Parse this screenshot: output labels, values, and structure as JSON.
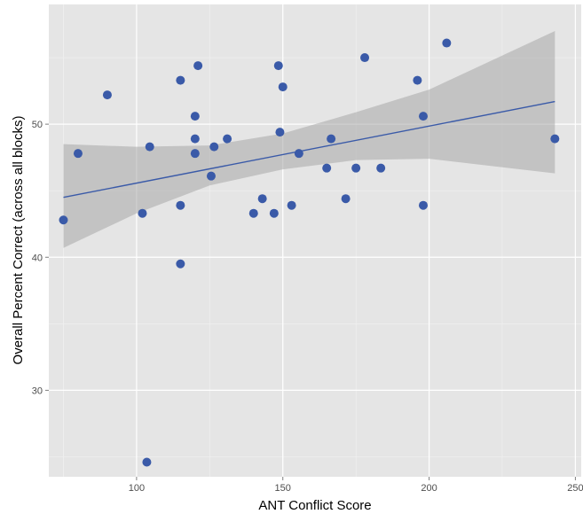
{
  "chart_data": {
    "type": "scatter",
    "title": "",
    "xlabel": "ANT Conflict Score",
    "ylabel": "Overall Percent Correct (across all blocks)",
    "xlim": [
      70,
      252
    ],
    "ylim": [
      23.5,
      59.0
    ],
    "x_ticks": [
      100,
      150,
      200,
      250
    ],
    "y_ticks": [
      30,
      40,
      50
    ],
    "grid": true,
    "legend": "none",
    "colors": {
      "panel_bg": "#e5e5e5",
      "grid_major": "#ffffff",
      "grid_minor": "#f2f2f2",
      "point": "#3a5aa8",
      "line": "#3a5aa8",
      "ribbon": "#a8a8a8"
    },
    "points": [
      {
        "x": 75,
        "y": 42.8
      },
      {
        "x": 80,
        "y": 47.8
      },
      {
        "x": 90,
        "y": 52.2
      },
      {
        "x": 102,
        "y": 43.3
      },
      {
        "x": 103.5,
        "y": 24.6
      },
      {
        "x": 104.5,
        "y": 48.3
      },
      {
        "x": 115,
        "y": 53.3
      },
      {
        "x": 115,
        "y": 43.9
      },
      {
        "x": 115,
        "y": 39.5
      },
      {
        "x": 120,
        "y": 50.6
      },
      {
        "x": 120,
        "y": 48.9
      },
      {
        "x": 120,
        "y": 47.8
      },
      {
        "x": 121,
        "y": 54.4
      },
      {
        "x": 125.5,
        "y": 46.1
      },
      {
        "x": 126.5,
        "y": 48.3
      },
      {
        "x": 131,
        "y": 48.9
      },
      {
        "x": 140,
        "y": 43.3
      },
      {
        "x": 143,
        "y": 44.4
      },
      {
        "x": 147,
        "y": 43.3
      },
      {
        "x": 148.5,
        "y": 54.4
      },
      {
        "x": 149,
        "y": 49.4
      },
      {
        "x": 150,
        "y": 52.8
      },
      {
        "x": 153,
        "y": 43.9
      },
      {
        "x": 155.5,
        "y": 47.8
      },
      {
        "x": 165,
        "y": 46.7
      },
      {
        "x": 166.5,
        "y": 48.9
      },
      {
        "x": 171.5,
        "y": 44.4
      },
      {
        "x": 175,
        "y": 46.7
      },
      {
        "x": 178,
        "y": 55.0
      },
      {
        "x": 183.5,
        "y": 46.7
      },
      {
        "x": 196,
        "y": 53.3
      },
      {
        "x": 198,
        "y": 50.6
      },
      {
        "x": 198,
        "y": 43.9
      },
      {
        "x": 206,
        "y": 56.1
      },
      {
        "x": 243,
        "y": 48.9
      }
    ],
    "fit_line": {
      "x": [
        75,
        243
      ],
      "y": [
        44.5,
        51.7
      ]
    },
    "confidence_band": [
      {
        "x": 75,
        "lower": 40.7,
        "upper": 48.5
      },
      {
        "x": 100,
        "lower": 43.3,
        "upper": 48.3
      },
      {
        "x": 125,
        "lower": 45.4,
        "upper": 48.4
      },
      {
        "x": 150,
        "lower": 46.6,
        "upper": 49.3
      },
      {
        "x": 175,
        "lower": 47.3,
        "upper": 50.9
      },
      {
        "x": 200,
        "lower": 47.4,
        "upper": 52.6
      },
      {
        "x": 243,
        "lower": 46.3,
        "upper": 57.0
      }
    ]
  }
}
